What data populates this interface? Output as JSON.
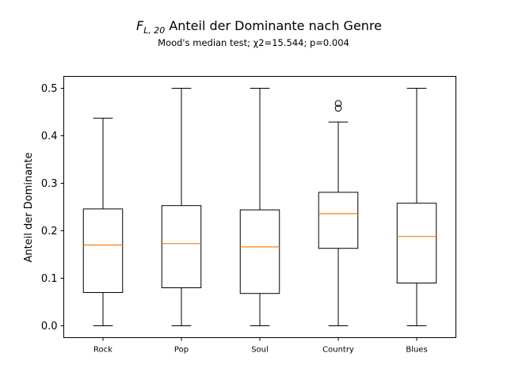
{
  "chart_data": {
    "type": "boxplot",
    "title_math_base": "F",
    "title_math_sub": "L, 20",
    "title_text": "Anteil der Dominante nach Genre",
    "subtitle": "Mood's median test; χ2=15.544; p=0.004",
    "xlabel": "",
    "ylabel": "Anteil der Dominante",
    "ylim": [
      -0.025,
      0.525
    ],
    "yticks": [
      0.0,
      0.1,
      0.2,
      0.3,
      0.4,
      0.5
    ],
    "ytick_labels": [
      "0.0",
      "0.1",
      "0.2",
      "0.3",
      "0.4",
      "0.5"
    ],
    "grid": false,
    "colors": {
      "box": "#000000",
      "median": "#ff7f0e"
    },
    "categories": [
      "Rock",
      "Pop",
      "Soul",
      "Country",
      "Blues"
    ],
    "boxes": [
      {
        "category": "Rock",
        "whisker_low": 0.0,
        "q1": 0.07,
        "median": 0.17,
        "q3": 0.246,
        "whisker_high": 0.437,
        "outliers": []
      },
      {
        "category": "Pop",
        "whisker_low": 0.0,
        "q1": 0.08,
        "median": 0.173,
        "q3": 0.253,
        "whisker_high": 0.5,
        "outliers": []
      },
      {
        "category": "Soul",
        "whisker_low": 0.0,
        "q1": 0.068,
        "median": 0.166,
        "q3": 0.244,
        "whisker_high": 0.5,
        "outliers": []
      },
      {
        "category": "Country",
        "whisker_low": 0.0,
        "q1": 0.163,
        "median": 0.236,
        "q3": 0.281,
        "whisker_high": 0.429,
        "outliers": [
          0.458,
          0.468
        ]
      },
      {
        "category": "Blues",
        "whisker_low": 0.0,
        "q1": 0.09,
        "median": 0.188,
        "q3": 0.258,
        "whisker_high": 0.5,
        "outliers": []
      }
    ]
  }
}
